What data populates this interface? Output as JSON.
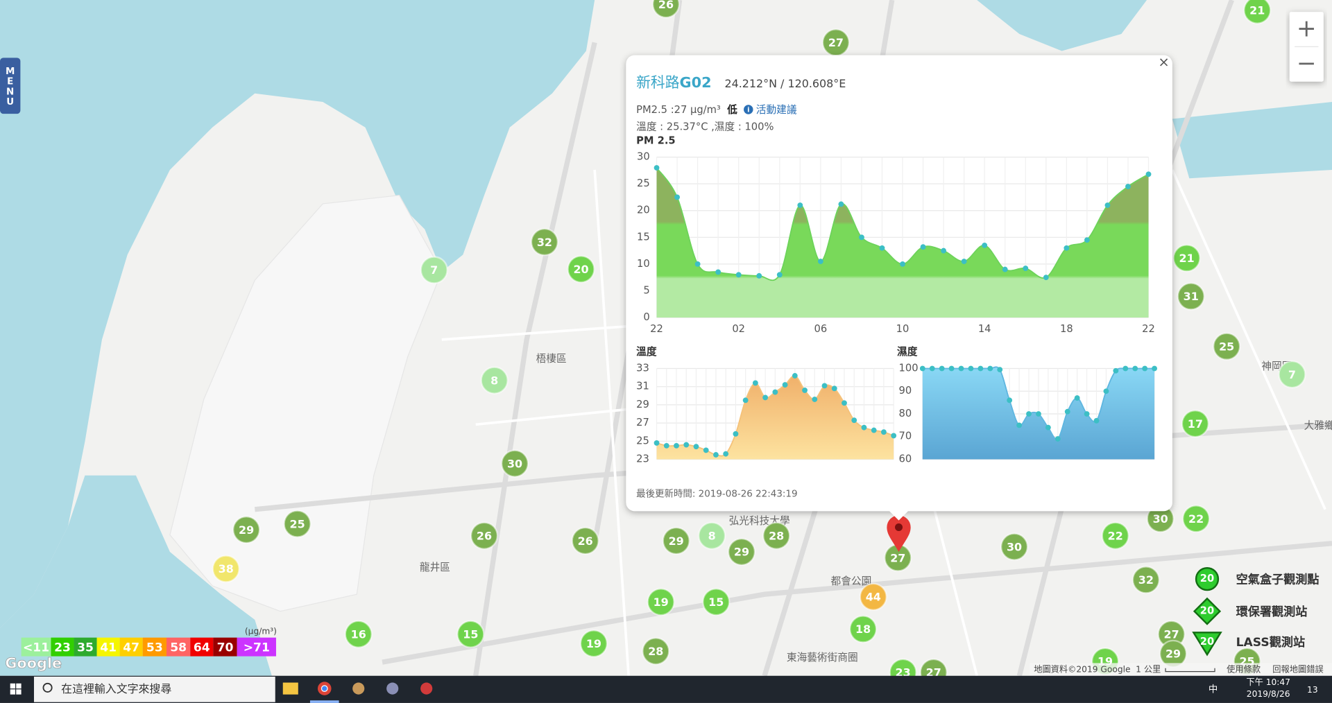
{
  "menu": "MENU",
  "zoom": {
    "in": "+",
    "out": "−"
  },
  "map_labels": [
    "梧棲區",
    "龍井區",
    "都會公園",
    "東海藝術街商圈",
    "弘光科技大學",
    "神岡區",
    "大雅鄉"
  ],
  "markers": [
    {
      "value": 26,
      "color": "#7cb050"
    },
    {
      "value": 27,
      "color": "#7cb050"
    },
    {
      "value": 21,
      "color": "#6fd34b"
    },
    {
      "value": 32,
      "color": "#7cb050"
    },
    {
      "value": 20,
      "color": "#6fd34b"
    },
    {
      "value": 7,
      "color": "#a8e6a0"
    },
    {
      "value": 8,
      "color": "#a8e6a0"
    },
    {
      "value": 30,
      "color": "#7cb050"
    },
    {
      "value": 29,
      "color": "#7cb050"
    },
    {
      "value": 25,
      "color": "#7cb050"
    },
    {
      "value": 38,
      "color": "#f1e66c"
    },
    {
      "value": 26,
      "color": "#7cb050"
    },
    {
      "value": 26,
      "color": "#7cb050"
    },
    {
      "value": 29,
      "color": "#7cb050"
    },
    {
      "value": 8,
      "color": "#a8e6a0"
    },
    {
      "value": 28,
      "color": "#7cb050"
    },
    {
      "value": 29,
      "color": "#7cb050"
    },
    {
      "value": 19,
      "color": "#6fd34b"
    },
    {
      "value": 15,
      "color": "#6fd34b"
    },
    {
      "value": 19,
      "color": "#6fd34b"
    },
    {
      "value": 28,
      "color": "#7cb050"
    },
    {
      "value": 16,
      "color": "#6fd34b"
    },
    {
      "value": 15,
      "color": "#6fd34b"
    },
    {
      "value": 44,
      "color": "#f3b743"
    },
    {
      "value": 18,
      "color": "#6fd34b"
    },
    {
      "value": 27,
      "color": "#7cb050"
    },
    {
      "value": 30,
      "color": "#7cb050"
    },
    {
      "value": 22,
      "color": "#6fd34b"
    },
    {
      "value": 30,
      "color": "#7cb050"
    },
    {
      "value": 22,
      "color": "#6fd34b"
    },
    {
      "value": 21,
      "color": "#6fd34b"
    },
    {
      "value": 31,
      "color": "#7cb050"
    },
    {
      "value": 25,
      "color": "#7cb050"
    },
    {
      "value": 7,
      "color": "#a8e6a0"
    },
    {
      "value": 17,
      "color": "#6fd34b"
    },
    {
      "value": 32,
      "color": "#7cb050"
    },
    {
      "value": 27,
      "color": "#7cb050"
    },
    {
      "value": 29,
      "color": "#7cb050"
    },
    {
      "value": 23,
      "color": "#6fd34b"
    },
    {
      "value": 27,
      "color": "#7cb050"
    },
    {
      "value": 19,
      "color": "#6fd34b"
    },
    {
      "value": 25,
      "color": "#7cb050"
    }
  ],
  "popup": {
    "close": "×",
    "name": "新科路",
    "id": "G02",
    "coords": "24.212°N / 120.608°E",
    "pm": "PM2.5 :27 μg/m³",
    "level": "低",
    "advice": "活動建議",
    "weather": "溫度 : 25.37°C ,濕度 : 100%",
    "updated": "最後更新時間: 2019-08-26 22:43:19"
  },
  "chart_data": [
    {
      "type": "area",
      "title": "PM 2.5",
      "color": "#6dd35a",
      "categories": [
        "22",
        null,
        null,
        null,
        "02",
        null,
        null,
        null,
        "06",
        null,
        null,
        null,
        "10",
        null,
        null,
        null,
        "14",
        null,
        null,
        null,
        "18",
        null,
        null,
        null,
        "22"
      ],
      "values": [
        28,
        22.5,
        10,
        8.5,
        8,
        7.8,
        8,
        21,
        10.5,
        21.2,
        15,
        13,
        10,
        13.2,
        12.5,
        10.5,
        13.5,
        9,
        9.2,
        7.5,
        13,
        14.5,
        21,
        24.5,
        26.8
      ],
      "ylim": [
        0,
        30
      ],
      "yticks": [
        0,
        5,
        10,
        15,
        20,
        25,
        30
      ],
      "grid": true
    },
    {
      "type": "area",
      "title": "溫度",
      "color": "#f5c27a",
      "values": [
        24.8,
        24.5,
        24.5,
        24.6,
        24.4,
        24.0,
        23.5,
        23.6,
        25.8,
        29.5,
        31.4,
        29.8,
        30.4,
        31.2,
        32.2,
        30.6,
        29.6,
        31.1,
        30.8,
        29.2,
        27.3,
        26.5,
        26.2,
        26.0,
        25.6
      ],
      "ylim": [
        23,
        33
      ],
      "yticks": [
        23,
        25,
        27,
        29,
        31,
        33
      ],
      "grid": true
    },
    {
      "type": "area",
      "title": "濕度",
      "color": "#5fb6e0",
      "values": [
        100,
        100,
        100,
        100,
        100,
        100,
        100,
        100,
        99.5,
        86,
        75,
        80,
        80,
        74,
        69,
        81,
        87,
        80,
        77,
        90,
        99,
        100,
        100,
        100,
        100
      ],
      "ylim": [
        60,
        100
      ],
      "yticks": [
        60,
        70,
        80,
        90,
        100
      ],
      "grid": true
    }
  ],
  "legend": {
    "unit": "(μg/m³)",
    "items": [
      {
        "label": "<11",
        "color": "#9cf09c"
      },
      {
        "label": "23",
        "color": "#31cf00"
      },
      {
        "label": "35",
        "color": "#2eaa2e"
      },
      {
        "label": "41",
        "color": "#f5f500"
      },
      {
        "label": "47",
        "color": "#ffcf00"
      },
      {
        "label": "53",
        "color": "#ff9a00"
      },
      {
        "label": "58",
        "color": "#ff6464"
      },
      {
        "label": "64",
        "color": "#f00000"
      },
      {
        "label": "70",
        "color": "#990000"
      },
      {
        "label": ">71",
        "color": "#cc33ff"
      }
    ]
  },
  "station_legend": {
    "icon_value": "20",
    "items": [
      "空氣盒子觀測點",
      "環保署觀測站",
      "LASS觀測站"
    ]
  },
  "map_footer": {
    "logo": "Google",
    "data": "地圖資料©2019 Google",
    "scale": "1 公里",
    "terms": "使用條款",
    "report": "回報地圖錯誤"
  },
  "taskbar": {
    "search": "在這裡輸入文字來搜尋",
    "ime": "中",
    "time": "下午 10:47",
    "date": "2019/8/26",
    "notifications": "13"
  }
}
